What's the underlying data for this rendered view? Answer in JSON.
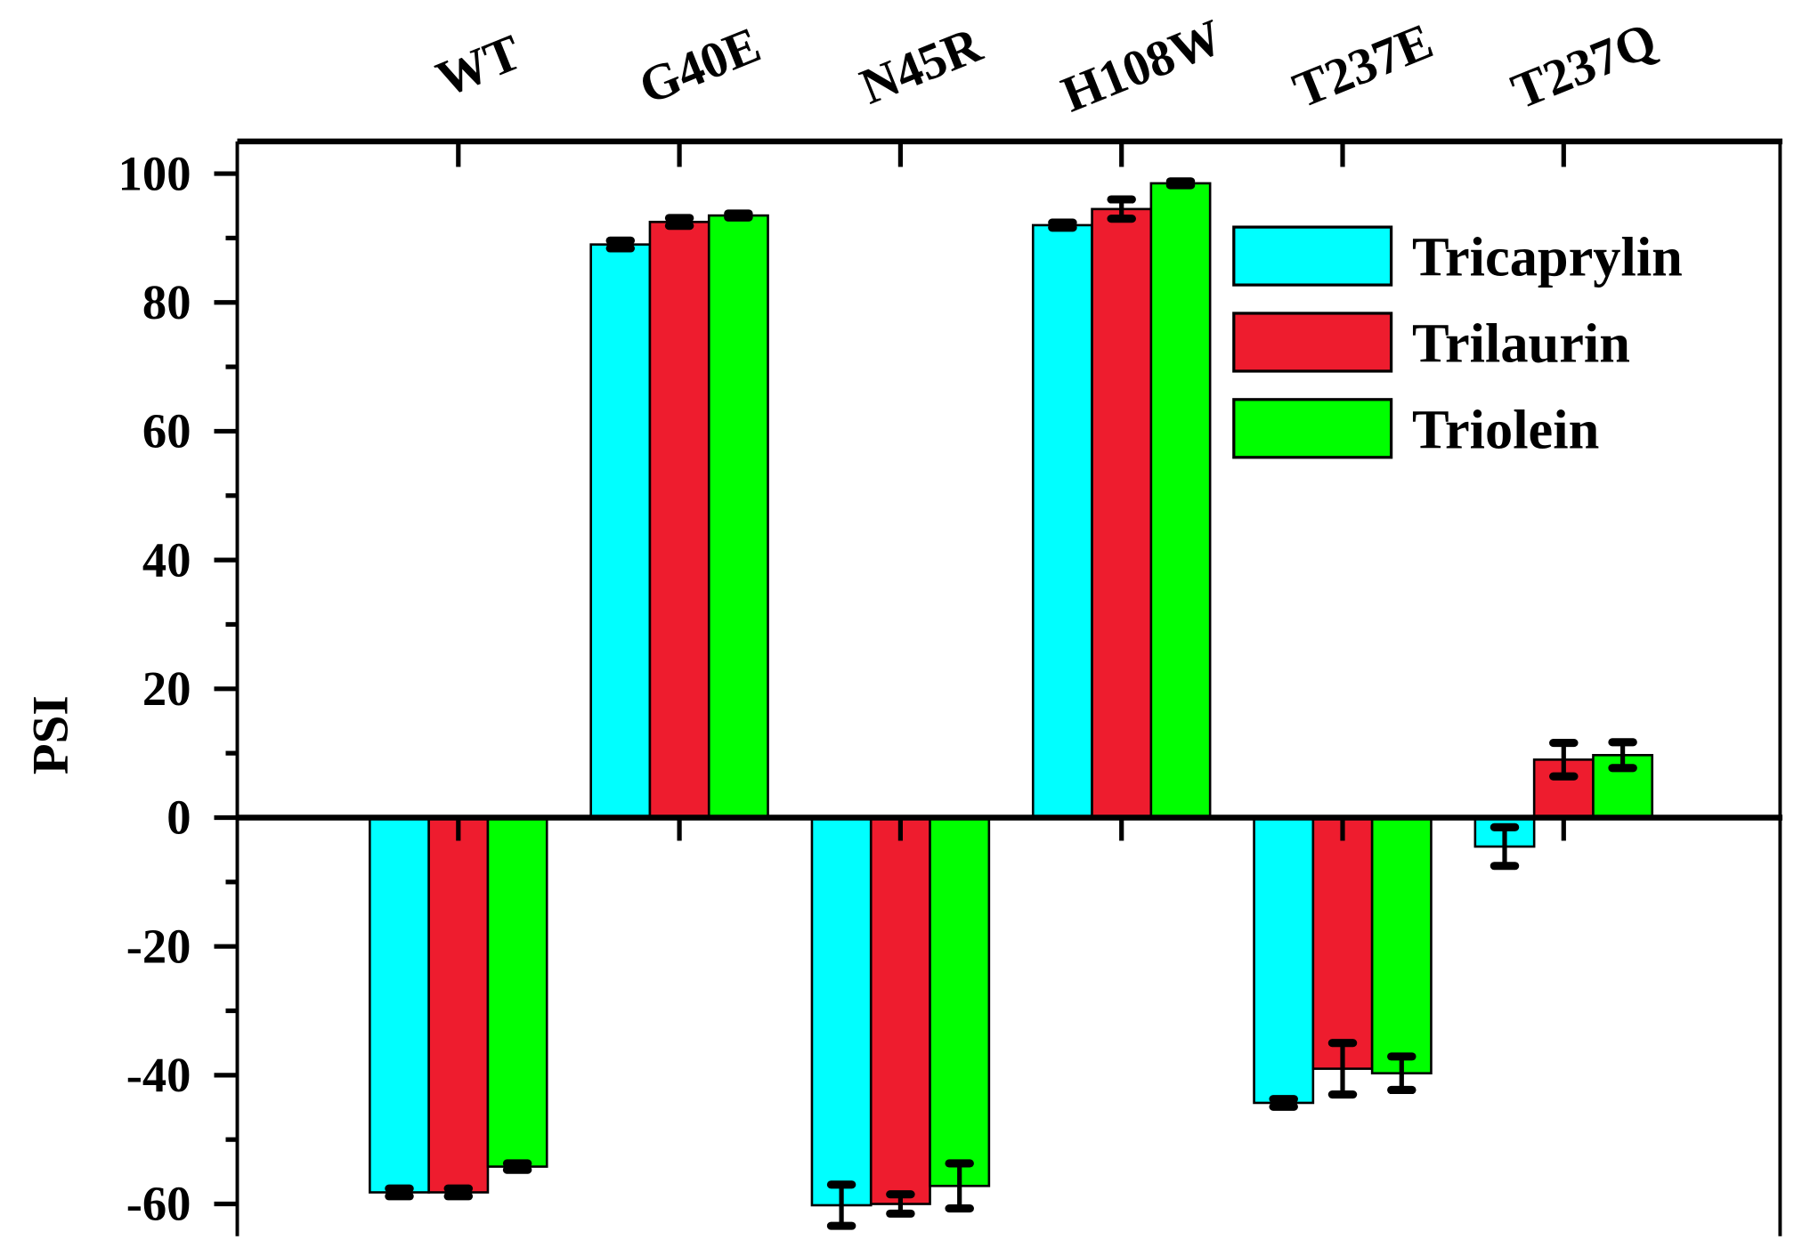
{
  "chart_data": {
    "type": "bar",
    "title": "",
    "xlabel": "",
    "ylabel": "PSI",
    "ylim": [
      -65,
      105
    ],
    "yticks": [
      -60,
      -40,
      -20,
      0,
      20,
      40,
      60,
      80,
      100
    ],
    "categories": [
      "WT",
      "G40E",
      "N45R",
      "H108W",
      "T237E",
      "T237Q"
    ],
    "category_axis_position": "top",
    "grid": false,
    "legend_position": "top-right",
    "series": [
      {
        "name": "Tricaprylin",
        "color": "#00ffff",
        "values": [
          -58.2,
          89.0,
          -60.2,
          92.0,
          -44.3,
          -4.5
        ],
        "errors": [
          0.6,
          0.6,
          3.2,
          0.4,
          0.6,
          3.0
        ]
      },
      {
        "name": "Trilaurin",
        "color": "#ee1c2e",
        "values": [
          -58.2,
          92.5,
          -60.0,
          94.5,
          -39.0,
          9.0
        ],
        "errors": [
          0.6,
          0.6,
          1.5,
          1.5,
          4.0,
          2.6
        ]
      },
      {
        "name": "Triolein",
        "color": "#00ff00",
        "values": [
          -54.2,
          93.5,
          -57.2,
          98.5,
          -39.7,
          9.7
        ],
        "errors": [
          0.5,
          0.3,
          3.5,
          0.3,
          2.6,
          2.0
        ]
      }
    ]
  }
}
